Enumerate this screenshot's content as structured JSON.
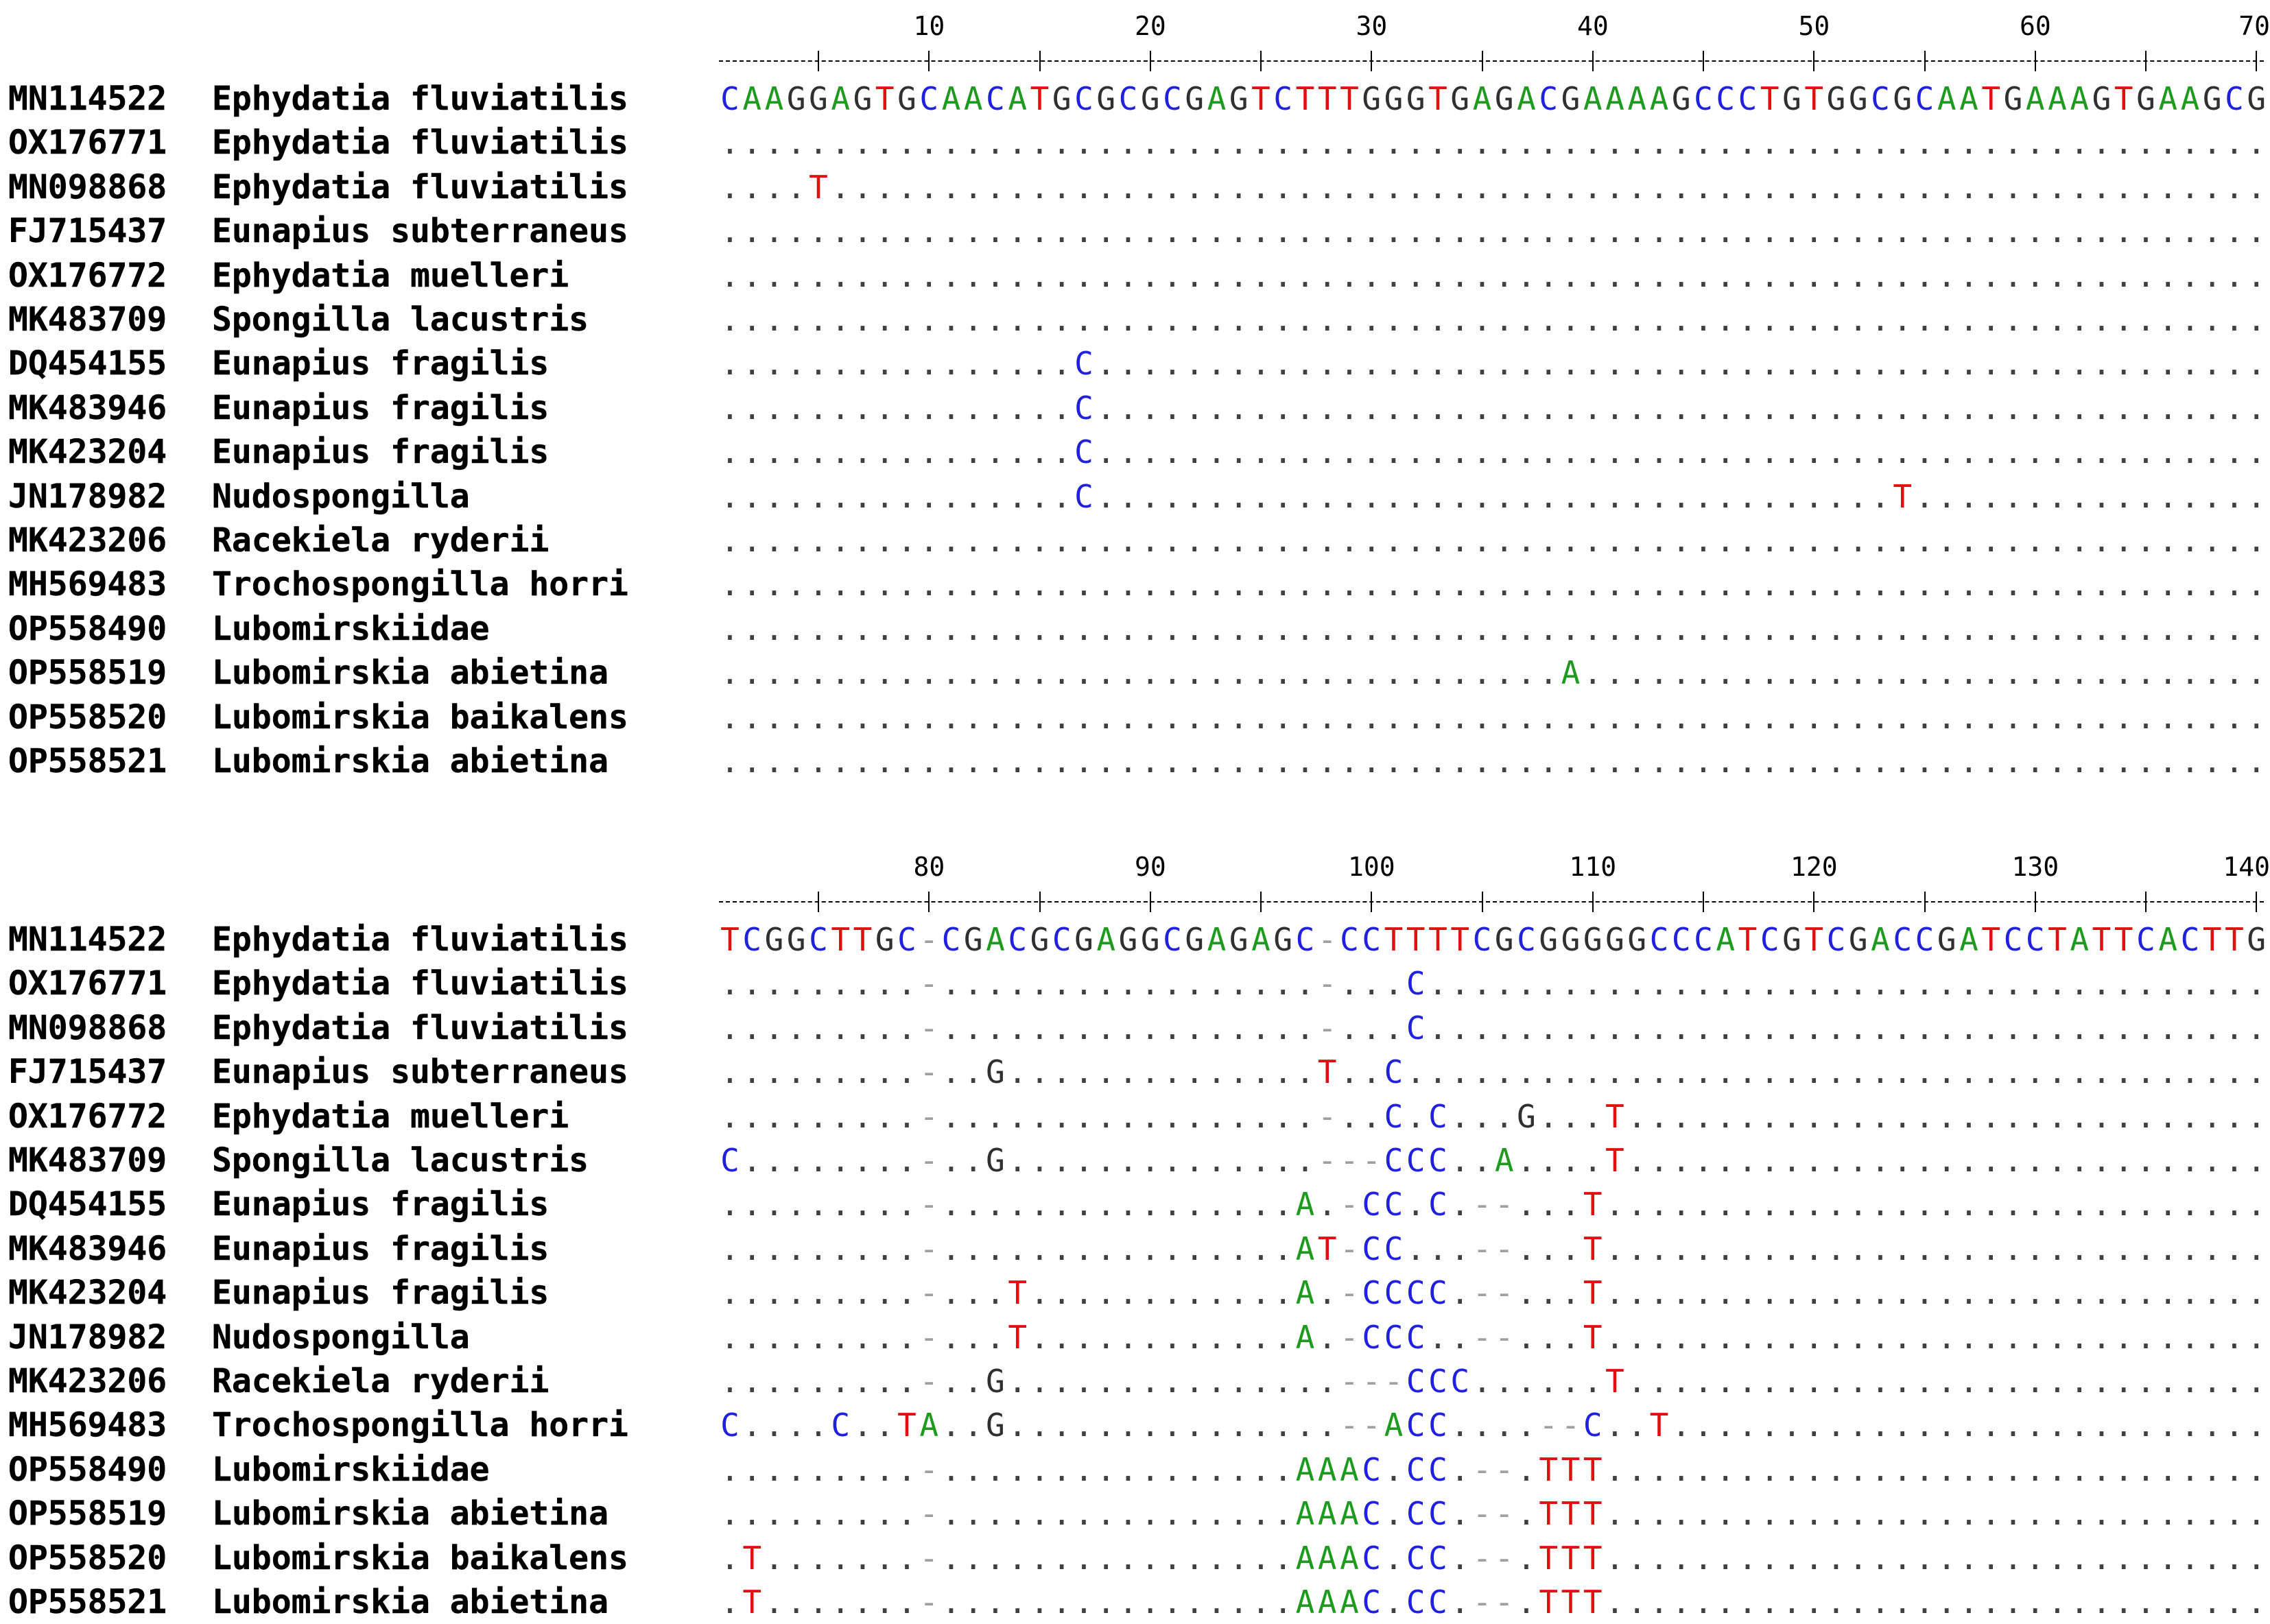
{
  "colors": {
    "A": "#1e9a1e",
    "C": "#2020e0",
    "G": "#303030",
    "T": "#e01010",
    "-": "#a0a0a0",
    "gapdot": "#404040"
  },
  "blocks": [
    {
      "start": 1,
      "ruler": [
        {
          "pos": 10,
          "label": "10"
        },
        {
          "pos": 20,
          "label": "20"
        },
        {
          "pos": 30,
          "label": "30"
        },
        {
          "pos": 40,
          "label": "40"
        },
        {
          "pos": 50,
          "label": "50"
        },
        {
          "pos": 60,
          "label": "60"
        },
        {
          "pos": 70,
          "label": "70"
        }
      ],
      "rows": [
        {
          "id": "MN114522",
          "name": "Ephydatia fluviatilis",
          "seq": "CAAGGAGTGCAACATGCGCGCGAGTCTTTGGGTGAGACGAAAAGCCCTGTGGCGCAATGAAAGTGAAGCG"
        },
        {
          "id": "OX176771",
          "name": "Ephydatia fluviatilis",
          "seq": "......................................................................"
        },
        {
          "id": "MN098868",
          "name": "Ephydatia fluviatilis",
          "seq": "....T................................................................."
        },
        {
          "id": "FJ715437",
          "name": "Eunapius subterraneus",
          "seq": "......................................................................"
        },
        {
          "id": "OX176772",
          "name": "Ephydatia muelleri",
          "seq": "......................................................................"
        },
        {
          "id": "MK483709",
          "name": "Spongilla lacustris",
          "seq": "......................................................................"
        },
        {
          "id": "DQ454155",
          "name": "Eunapius fragilis",
          "seq": "................C....................................................."
        },
        {
          "id": "MK483946",
          "name": "Eunapius fragilis",
          "seq": "................C....................................................."
        },
        {
          "id": "MK423204",
          "name": "Eunapius fragilis",
          "seq": "................C....................................................."
        },
        {
          "id": "JN178982",
          "name": "Nudospongilla",
          "seq": "................C....................................T................"
        },
        {
          "id": "MK423206",
          "name": "Racekiela ryderii",
          "seq": "......................................................................"
        },
        {
          "id": "MH569483",
          "name": "Trochospongilla horri",
          "seq": "......................................................................"
        },
        {
          "id": "OP558490",
          "name": "Lubomirskiidae",
          "seq": "......................................................................"
        },
        {
          "id": "OP558519",
          "name": "Lubomirskia abietina",
          "seq": "......................................A..............................."
        },
        {
          "id": "OP558520",
          "name": "Lubomirskia baikalens",
          "seq": "......................................................................"
        },
        {
          "id": "OP558521",
          "name": "Lubomirskia abietina",
          "seq": "......................................................................"
        }
      ]
    },
    {
      "start": 71,
      "ruler": [
        {
          "pos": 80,
          "label": "80"
        },
        {
          "pos": 90,
          "label": "90"
        },
        {
          "pos": 100,
          "label": "100"
        },
        {
          "pos": 110,
          "label": "110"
        },
        {
          "pos": 120,
          "label": "120"
        },
        {
          "pos": 130,
          "label": "130"
        },
        {
          "pos": 140,
          "label": "140"
        }
      ],
      "rows": [
        {
          "id": "MN114522",
          "name": "Ephydatia fluviatilis",
          "seq": "TCGGCTTGC-CGACGCGAGGCGAGAGC-CCTTTTCGCGGGGGCCCATCGTCGACCGATCCTATTCACTTG"
        },
        {
          "id": "OX176771",
          "name": "Ephydatia fluviatilis",
          "seq": ".........-.................-...C......................................"
        },
        {
          "id": "MN098868",
          "name": "Ephydatia fluviatilis",
          "seq": ".........-.................-...C......................................"
        },
        {
          "id": "FJ715437",
          "name": "Eunapius subterraneus",
          "seq": ".........-..G..............T..C......................................."
        },
        {
          "id": "OX176772",
          "name": "Ephydatia muelleri",
          "seq": ".........-.................-..C.C...G...T............................."
        },
        {
          "id": "MK483709",
          "name": "Spongilla lacustris",
          "seq": "C........-..G..............---CCC..A....T............................."
        },
        {
          "id": "DQ454155",
          "name": "Eunapius fragilis",
          "seq": ".........-................A.-CC.C.--...T.............................."
        },
        {
          "id": "MK483946",
          "name": "Eunapius fragilis",
          "seq": ".........-................AT-CC...--...T.............................."
        },
        {
          "id": "MK423204",
          "name": "Eunapius fragilis",
          "seq": ".........-...T............A.-CCCC.--...T.............................."
        },
        {
          "id": "JN178982",
          "name": "Nudospongilla",
          "seq": ".........-...T............A.-CCC..--...T.............................."
        },
        {
          "id": "MK423206",
          "name": "Racekiela ryderii",
          "seq": ".........-..G...............---CCC......T............................."
        },
        {
          "id": "MH569483",
          "name": "Trochospongilla horri",
          "seq": "C....C..TA..G...............--ACC....--C..T............................"
        },
        {
          "id": "OP558490",
          "name": "Lubomirskiidae",
          "seq": ".........-................AAAC.CC.--.TTT.............................."
        },
        {
          "id": "OP558519",
          "name": "Lubomirskia abietina",
          "seq": ".........-................AAAC.CC.--.TTT.............................."
        },
        {
          "id": "OP558520",
          "name": "Lubomirskia baikalens",
          "seq": ".T.......-................AAAC.CC.--.TTT.............................."
        },
        {
          "id": "OP558521",
          "name": "Lubomirskia abietina",
          "seq": ".T.......-................AAAC.CC.--.TTT.............................."
        }
      ]
    }
  ]
}
